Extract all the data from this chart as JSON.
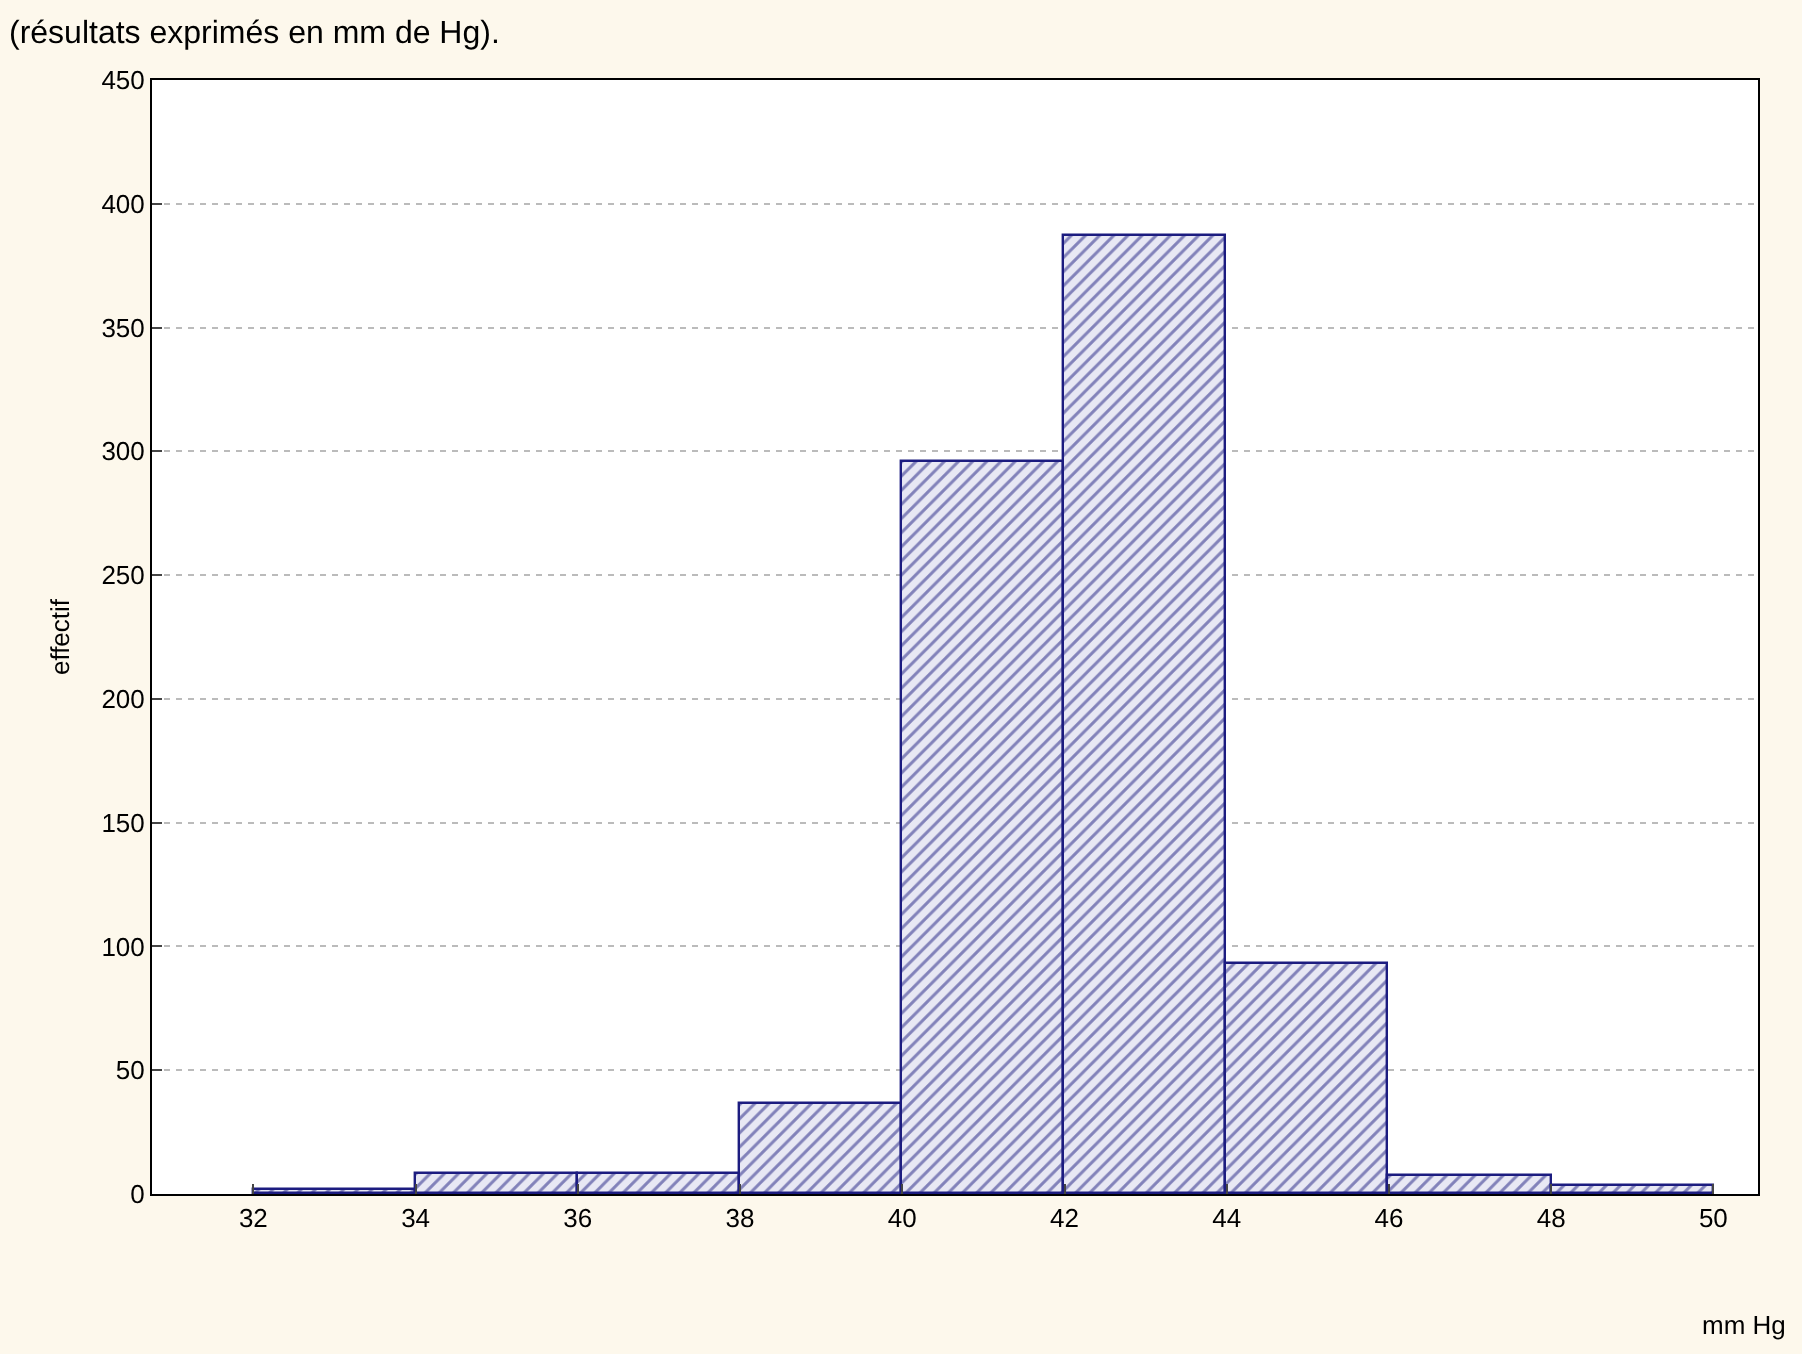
{
  "chart_data": {
    "type": "histogram",
    "title": "(résultats exprimés en mm de Hg).",
    "xlabel": "mm Hg",
    "ylabel": "effectif",
    "bins": [
      32,
      34,
      36,
      38,
      40,
      42,
      44,
      46,
      48,
      50
    ],
    "values": [
      2,
      8,
      8,
      36,
      296,
      387,
      93,
      7,
      3
    ],
    "color": "#1c1c80",
    "xlim": [
      30.75,
      50.55
    ],
    "xticks": [
      32,
      34,
      36,
      38,
      40,
      42,
      44,
      46,
      48,
      50
    ],
    "ylim": [
      0,
      450
    ],
    "yticks": [
      0,
      50,
      100,
      150,
      200,
      250,
      300,
      350,
      400,
      450
    ],
    "grid": "y"
  }
}
